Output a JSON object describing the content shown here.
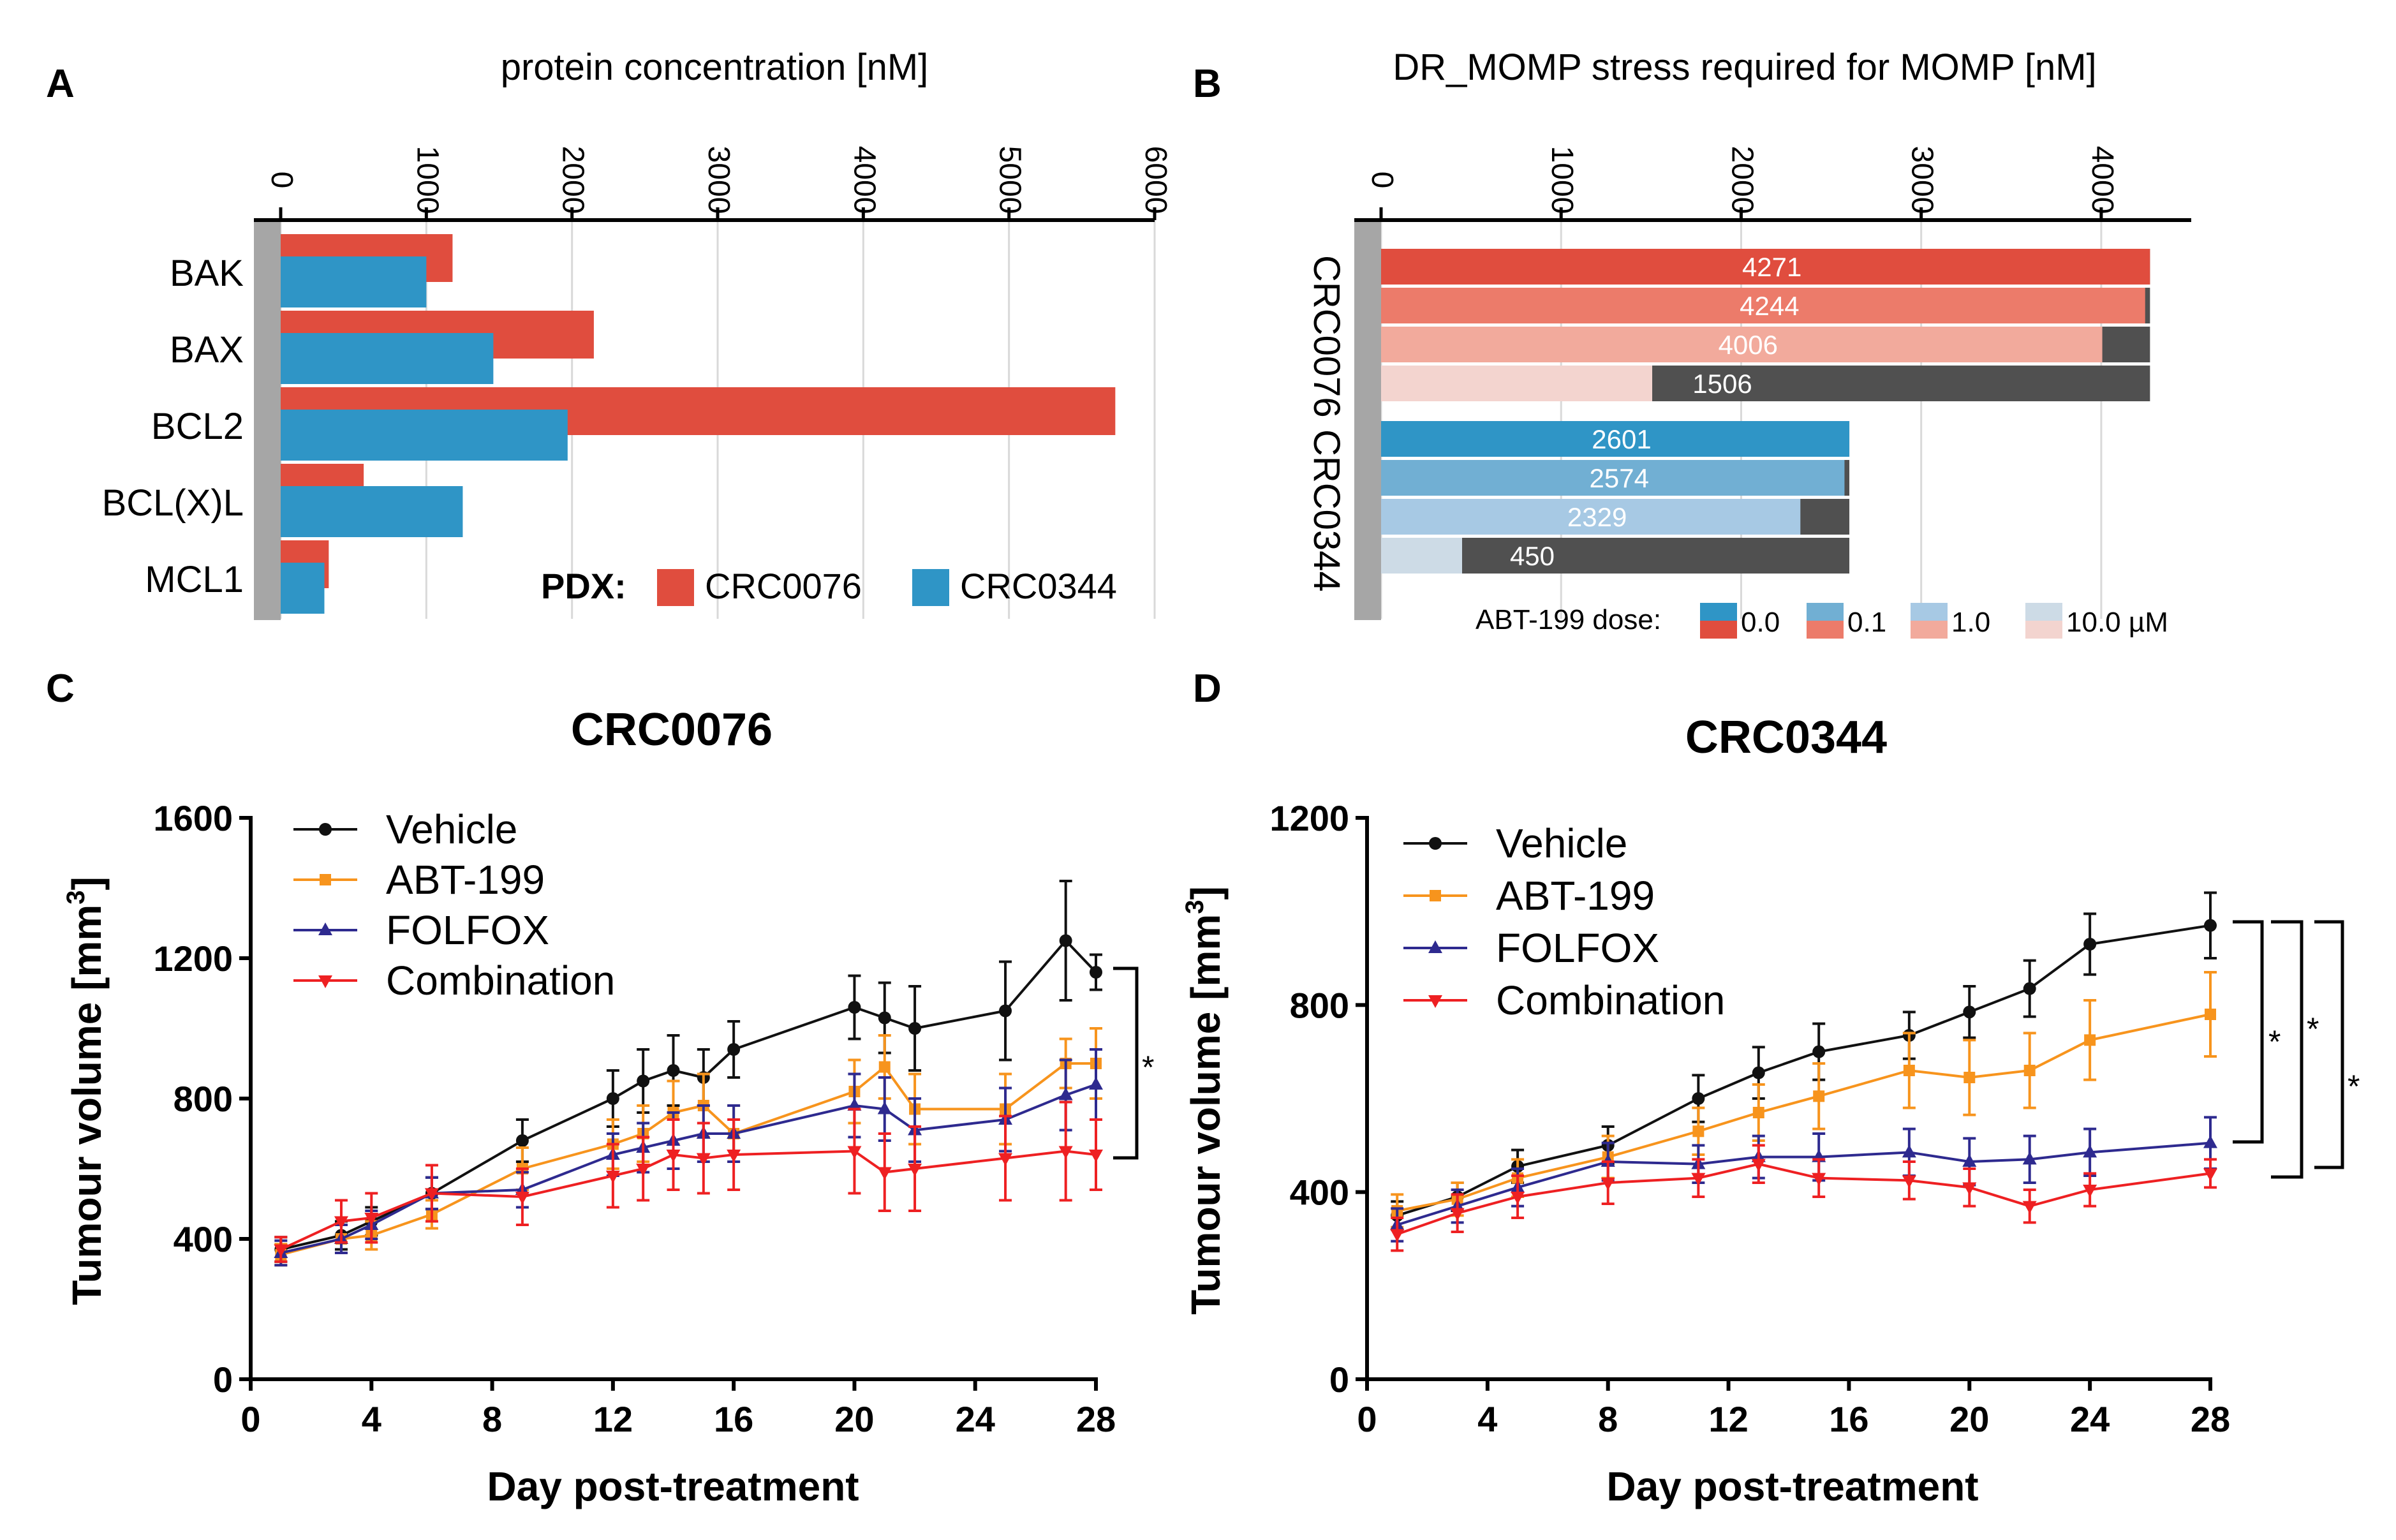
{
  "panels": {
    "A": "A",
    "B": "B",
    "C": "C",
    "D": "D"
  },
  "colors": {
    "crc0076": "#e04d3e",
    "crc0344": "#2f95c6",
    "vehicle": "#111111",
    "abt199": "#f7941d",
    "folfox": "#2e2a8f",
    "combination": "#ee2022",
    "dark_bar": "#505050",
    "gray_axis": "#a6a6a6",
    "red_shades": [
      "#e04d3e",
      "#ec7b6a",
      "#f2aa9c",
      "#f3d4cf"
    ],
    "blue_shades": [
      "#2f95c6",
      "#71afd3",
      "#a7c9e4",
      "#cddbe6"
    ]
  },
  "chart_data": [
    {
      "id": "A",
      "type": "bar",
      "orientation": "horizontal",
      "title": "protein concentration [nM]",
      "categories": [
        "BAK",
        "BAX",
        "BCL2",
        "BCL(X)L",
        "MCL1"
      ],
      "series": [
        {
          "name": "CRC0076",
          "values": [
            1180,
            2150,
            5730,
            570,
            330
          ]
        },
        {
          "name": "CRC0344",
          "values": [
            1000,
            1460,
            1970,
            1250,
            300
          ]
        }
      ],
      "xlim": [
        0,
        6000
      ],
      "ticks": [
        "0",
        "1000",
        "2000",
        "3000",
        "4000",
        "5000",
        "6000"
      ],
      "legend_title": "PDX:",
      "legend": [
        "CRC0076",
        "CRC0344"
      ]
    },
    {
      "id": "B",
      "type": "bar",
      "orientation": "horizontal",
      "title": "DR_MOMP stress required for MOMP [nM]",
      "groups": [
        "CRC0076",
        "CRC0344"
      ],
      "doses": [
        "0.0",
        "0.1",
        "1.0",
        "10.0 µM"
      ],
      "dose_label": "ABT-199 dose:",
      "series": [
        {
          "name": "CRC0076",
          "values": [
            4271,
            4244,
            4006,
            1506
          ],
          "labels": [
            "4271",
            "4244",
            "4006",
            "1506"
          ]
        },
        {
          "name": "CRC0344",
          "values": [
            2601,
            2574,
            2329,
            450
          ],
          "labels": [
            "2601",
            "2574",
            "2329",
            "450"
          ]
        }
      ],
      "xlim": [
        0,
        4500
      ],
      "ticks": [
        "0",
        "1000",
        "2000",
        "3000",
        "4000"
      ]
    },
    {
      "id": "C",
      "type": "line",
      "title": "CRC0076",
      "xlabel": "Day post-treatment",
      "ylabel_main": "Tumour volume [mm",
      "ylabel_sup": "3",
      "ylabel_end": "]",
      "xlim": [
        0,
        28
      ],
      "ylim": [
        0,
        1600
      ],
      "xticks": [
        "0",
        "4",
        "8",
        "12",
        "16",
        "20",
        "24",
        "28"
      ],
      "yticks": [
        "0",
        "400",
        "800",
        "1200",
        "1600"
      ],
      "x": [
        1,
        3,
        4,
        6,
        9,
        12,
        13,
        14,
        15,
        16,
        20,
        21,
        22,
        25,
        27,
        28
      ],
      "series": [
        {
          "name": "Vehicle",
          "values": [
            370,
            410,
            450,
            530,
            680,
            800,
            850,
            880,
            860,
            940,
            1060,
            1030,
            1000,
            1050,
            1250,
            1160
          ],
          "err": [
            35,
            40,
            40,
            45,
            60,
            80,
            90,
            100,
            80,
            80,
            90,
            100,
            120,
            140,
            170,
            50
          ]
        },
        {
          "name": "ABT-199",
          "values": [
            355,
            400,
            410,
            470,
            600,
            670,
            700,
            760,
            780,
            700,
            820,
            890,
            770,
            770,
            900,
            900
          ],
          "err": [
            30,
            40,
            40,
            40,
            60,
            70,
            80,
            90,
            90,
            80,
            90,
            90,
            100,
            100,
            70,
            100
          ]
        },
        {
          "name": "FOLFOX",
          "values": [
            360,
            400,
            440,
            530,
            540,
            640,
            660,
            680,
            700,
            700,
            780,
            770,
            710,
            740,
            810,
            840
          ],
          "err": [
            35,
            40,
            40,
            45,
            50,
            60,
            70,
            80,
            80,
            80,
            90,
            90,
            90,
            90,
            100,
            100
          ]
        },
        {
          "name": "Combination",
          "values": [
            370,
            450,
            460,
            530,
            520,
            580,
            600,
            640,
            630,
            640,
            650,
            590,
            600,
            630,
            650,
            640
          ],
          "err": [
            35,
            60,
            70,
            80,
            80,
            90,
            90,
            100,
            100,
            100,
            120,
            110,
            120,
            120,
            140,
            100
          ]
        }
      ],
      "legend": [
        "Vehicle",
        "ABT-199",
        "FOLFOX",
        "Combination"
      ],
      "significance": [
        "*"
      ]
    },
    {
      "id": "D",
      "type": "line",
      "title": "CRC0344",
      "xlabel": "Day post-treatment",
      "ylabel_main": "Tumour volume [mm",
      "ylabel_sup": "3",
      "ylabel_end": "]",
      "xlim": [
        0,
        28
      ],
      "ylim": [
        0,
        1200
      ],
      "xticks": [
        "0",
        "4",
        "8",
        "12",
        "16",
        "20",
        "24",
        "28"
      ],
      "yticks": [
        "0",
        "400",
        "800",
        "1200"
      ],
      "x": [
        1,
        3,
        5,
        8,
        11,
        13,
        15,
        18,
        20,
        22,
        24,
        28
      ],
      "series": [
        {
          "name": "Vehicle",
          "values": [
            350,
            390,
            455,
            500,
            600,
            655,
            700,
            735,
            785,
            835,
            930,
            970
          ],
          "err": [
            30,
            30,
            35,
            40,
            50,
            55,
            60,
            50,
            55,
            60,
            65,
            70
          ]
        },
        {
          "name": "ABT-199",
          "values": [
            360,
            385,
            430,
            475,
            530,
            570,
            605,
            660,
            645,
            660,
            725,
            780
          ],
          "err": [
            35,
            35,
            40,
            45,
            50,
            60,
            70,
            80,
            80,
            80,
            85,
            90
          ]
        },
        {
          "name": "FOLFOX",
          "values": [
            330,
            370,
            410,
            465,
            460,
            475,
            475,
            485,
            465,
            470,
            485,
            505
          ],
          "err": [
            35,
            35,
            40,
            40,
            40,
            45,
            50,
            50,
            50,
            50,
            50,
            55
          ]
        },
        {
          "name": "Combination",
          "values": [
            310,
            355,
            390,
            420,
            430,
            460,
            430,
            425,
            410,
            370,
            405,
            440
          ],
          "err": [
            35,
            40,
            45,
            45,
            40,
            40,
            40,
            40,
            40,
            35,
            35,
            30
          ]
        }
      ],
      "legend": [
        "Vehicle",
        "ABT-199",
        "FOLFOX",
        "Combination"
      ],
      "significance": [
        "*",
        "*",
        "*"
      ]
    }
  ]
}
